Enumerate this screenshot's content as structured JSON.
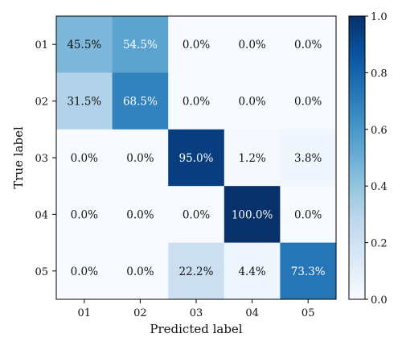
{
  "chart_data": {
    "type": "heatmap",
    "title": "",
    "xlabel": "Predicted label",
    "ylabel": "True label",
    "x_categories": [
      "01",
      "02",
      "03",
      "04",
      "05"
    ],
    "y_categories": [
      "01",
      "02",
      "03",
      "04",
      "05"
    ],
    "values": [
      [
        0.455,
        0.545,
        0.0,
        0.0,
        0.0
      ],
      [
        0.315,
        0.685,
        0.0,
        0.0,
        0.0
      ],
      [
        0.0,
        0.0,
        0.95,
        0.012,
        0.038
      ],
      [
        0.0,
        0.0,
        0.0,
        1.0,
        0.0
      ],
      [
        0.0,
        0.0,
        0.222,
        0.044,
        0.733
      ]
    ],
    "cell_labels": [
      [
        "45.5%",
        "54.5%",
        "0.0%",
        "0.0%",
        "0.0%"
      ],
      [
        "31.5%",
        "68.5%",
        "0.0%",
        "0.0%",
        "0.0%"
      ],
      [
        "0.0%",
        "0.0%",
        "95.0%",
        "1.2%",
        "3.8%"
      ],
      [
        "0.0%",
        "0.0%",
        "0.0%",
        "100.0%",
        "0.0%"
      ],
      [
        "0.0%",
        "0.0%",
        "22.2%",
        "4.4%",
        "73.3%"
      ]
    ],
    "colorbar": {
      "range": [
        0.0,
        1.0
      ],
      "ticks": [
        0.0,
        0.2,
        0.4,
        0.6,
        0.8,
        1.0
      ],
      "tick_labels": [
        "0.0",
        "0.2",
        "0.4",
        "0.6",
        "0.8",
        "1.0"
      ],
      "colormap": "Blues",
      "color_low": "#f7fbff",
      "color_high": "#08306b"
    },
    "grid": false
  }
}
